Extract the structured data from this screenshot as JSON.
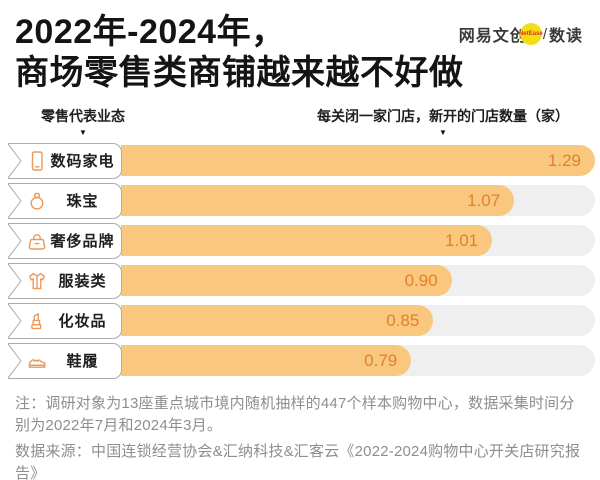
{
  "header": {
    "title_line1": "2022年-2024年，",
    "title_line2": "商场零售类商铺越来越不好做",
    "logo": {
      "brand": "网易文创",
      "badge": "NetEase",
      "separator": "/",
      "product": "数读",
      "badge_color": "#f2de12",
      "badge_text_color": "#d0381f"
    }
  },
  "markers": {
    "down_arrow": "▼"
  },
  "chart_data": {
    "type": "bar",
    "orientation": "horizontal",
    "title": "2022年-2024年，商场零售类商铺越来越不好做",
    "category_axis_label": "零售代表业态",
    "value_axis_label": "每关闭一家门店，新开的门店数量（家）",
    "categories": [
      "数码家电",
      "珠宝",
      "奢侈品牌",
      "服装类",
      "化妆品",
      "鞋履"
    ],
    "values": [
      1.29,
      1.07,
      1.01,
      0.9,
      0.85,
      0.79
    ],
    "value_labels": [
      "1.29",
      "1.07",
      "1.01",
      "0.90",
      "0.85",
      "0.79"
    ],
    "icons": [
      "smartphone-icon",
      "ring-icon",
      "handbag-icon",
      "shirt-icon",
      "lipstick-icon",
      "sneaker-icon"
    ],
    "xlim": [
      0,
      1.29
    ],
    "grid": false,
    "legend": null,
    "colors": {
      "bar": "#f9c87e",
      "track": "#efefef",
      "value_text": "#e2802b",
      "icon_stroke": "#e9995c",
      "label_border": "#acacac"
    }
  },
  "footer": {
    "note": "注：调研对象为13座重点城市境内随机抽样的447个样本购物中心，数据采集时间分别为2022年7月和2024年3月。",
    "source": "数据来源：中国连锁经营协会&汇纳科技&汇客云《2022-2024购物中心开关店研究报告》"
  }
}
